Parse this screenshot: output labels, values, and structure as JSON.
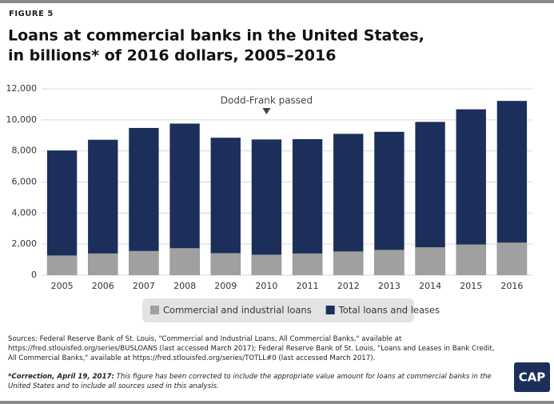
{
  "chart_data": {
    "type": "bar",
    "label": "FIGURE 5",
    "title": "Loans at commercial banks in the United States,",
    "subtitle": "in billions* of 2016 dollars, 2005–2016",
    "annotation": "Dodd-Frank passed",
    "annotation_category": "2010",
    "categories": [
      "2005",
      "2006",
      "2007",
      "2008",
      "2009",
      "2010",
      "2011",
      "2012",
      "2013",
      "2014",
      "2015",
      "2016"
    ],
    "series": [
      {
        "name": "Commercial and industrial loans",
        "color": "#a0a0a0",
        "values": [
          1270,
          1400,
          1560,
          1740,
          1420,
          1320,
          1400,
          1530,
          1630,
          1800,
          1980,
          2100
        ]
      },
      {
        "name": "Total loans and leases",
        "color": "#1c2f5a",
        "values": [
          8030,
          8720,
          9480,
          9760,
          8850,
          8740,
          8760,
          9100,
          9230,
          9870,
          10680,
          11220
        ]
      }
    ],
    "ylim": [
      0,
      12000
    ],
    "yticks": [
      0,
      {
        "value": 2000,
        "label": "2,000"
      },
      {
        "value": 4000,
        "label": "4,000"
      },
      {
        "value": 6000,
        "label": "6,000"
      },
      {
        "value": 8000,
        "label": "8,000"
      },
      {
        "value": 10000,
        "label": "10,000"
      },
      {
        "value": 12000,
        "label": "12,000"
      }
    ],
    "grid": true,
    "sources": "Sources: Federal Reserve Bank of St. Louis, \"Commercial and Industrial Loans, All Commercial Banks,\" available at https://fred.stlouisfed.org/series/BUSLOANS (last accessed March 2017); Federal Reserve Bank of St. Louis, \"Loans and Leases in Bank Credit, All Commercial Banks,\" available at https://fred.stlouisfed.org/series/TOTLL#0 (last accessed March 2017).",
    "correction_lead": "*Correction, April 19, 2017:",
    "correction": " This figure has been corrected to include the appropriate value amount for loans at commercial banks in the United States and to include all sources used in this analysis.",
    "logo": "CAP"
  }
}
